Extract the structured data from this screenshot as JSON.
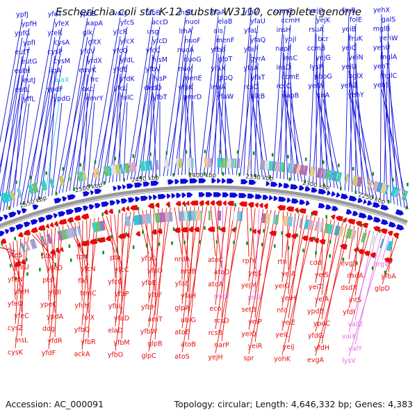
{
  "title": "Escherichia coli str. K-12 substr. W3110, complete genome",
  "footer": {
    "accession": "Accession: AC_000091",
    "summary": "Topology: circular; Length: 4,646,332 bp; Genes: 4,383"
  },
  "colors": {
    "forward": "#0a0ad8",
    "reverse": "#e80b0b",
    "rna": "#e46fe4",
    "rrna": "#30c8d8",
    "ruler": "#888888",
    "tick": "#1c8c1c"
  },
  "ruler_labels": [
    "2550 kbp",
    "2500 kbp",
    "2450 kbp",
    "2400 kbp",
    "2350 kbp",
    "2300 kbp",
    "2250 kbp"
  ],
  "forward_genes": [
    "ypfJ",
    "ypfH",
    "ypfG",
    "ypfI",
    "eutT",
    "eutG",
    "eutH",
    "eutJ",
    "eutL",
    "yffL",
    "yfeT",
    "yfeX",
    "yfeR",
    "cysA",
    "cysP",
    "cysM",
    "ligA",
    "alaX",
    "ypdF",
    "ypdG",
    "ypdE",
    "xapA",
    "glk",
    "gltX",
    "yfdV",
    "yfdX",
    "emrK",
    "frc",
    "oxc",
    "emrY",
    "vacJ",
    "yfcS",
    "yfcR",
    "yfcX",
    "yfcQ",
    "yfdL",
    "yfdE",
    "yfdK",
    "yfcL",
    "folC",
    "fabB",
    "accD",
    "usg",
    "yfcD",
    "yfcC",
    "hisM",
    "yfbV",
    "hisP",
    "dedD",
    "yfbT",
    "insB",
    "nuoI",
    "lrhA",
    "nuoF",
    "nuoA",
    "nuoG",
    "nuoJ",
    "menE",
    "yfbK",
    "pmrD",
    "elaA",
    "elaB",
    "ais",
    "menF",
    "yfbB",
    "glpT",
    "yfaX",
    "glpQ",
    "inaA",
    "yfaW",
    "yfaV",
    "yfaU",
    "yfaL",
    "yfaQ",
    "yfaP",
    "gyrA",
    "yfaA",
    "yfaT",
    "rcsC",
    "alkB",
    "ccmG",
    "ccmH",
    "insH",
    "yojI",
    "napF",
    "insC",
    "insD",
    "ccmE",
    "rcsC",
    "napB",
    "yejO",
    "yejK",
    "rsuA",
    "bcr",
    "ccmB",
    "yejG",
    "lysP",
    "pbpG",
    "yeiW",
    "cirA",
    "fruB",
    "folE",
    "yeiB",
    "fruK",
    "yeiC",
    "yeiN",
    "yeiU",
    "bglX",
    "yehZ",
    "yehY",
    "yehX",
    "galS",
    "mglB",
    "yehW",
    "yehU",
    "mglA",
    "yehT",
    "mglC",
    "yehS"
  ],
  "reverse_genes": [
    "yfeS",
    "yfeU",
    "yfeN",
    "yfeH",
    "yfeO",
    "yfeC",
    "cysZ",
    "insL",
    "cysK",
    "ptsH",
    "yfeD",
    "ptsI",
    "yfdI",
    "ypeC",
    "ypdA",
    "ddg",
    "yfdR",
    "yfdF",
    "torI",
    "yfcN",
    "flk",
    "trmC",
    "yfcH",
    "folX",
    "yfbQ",
    "yfbR",
    "ackA",
    "pta",
    "yfcC",
    "yfcG",
    "yfbP",
    "yfbL",
    "yfaD",
    "elaD",
    "yfbM",
    "yfbO",
    "yfbG",
    "yfaO",
    "yfbE",
    "yfbF",
    "yfbH",
    "arnT",
    "yfbW",
    "glpB",
    "glpC",
    "nrdA",
    "nrdB",
    "yfaE",
    "yfaH",
    "glpA",
    "ubiG",
    "atoE",
    "atoB",
    "atoS",
    "atoC",
    "atoD",
    "atoA",
    "micF",
    "eco",
    "rcsD",
    "rcsB",
    "narP",
    "yejH",
    "rplY",
    "yejL",
    "yejM",
    "proL",
    "setB",
    "yeiP",
    "yeiQ",
    "yeiR",
    "spr",
    "rtn",
    "yejA",
    "yeiG",
    "yeiH",
    "nfo",
    "yeiE",
    "yeiL",
    "yeiJ",
    "yohK",
    "cdd",
    "yeiS",
    "yeiT",
    "yeiA",
    "ypdB",
    "ypdC",
    "yfdG",
    "yfdH",
    "evgA",
    "evgS",
    "dsdA",
    "dsdX",
    "intS",
    "yfdI",
    "valU",
    "valX",
    "valY",
    "lysV",
    "argW",
    "yfbA",
    "glpD"
  ],
  "rna_genes": [
    "alaX",
    "valU",
    "valX",
    "valY",
    "lysV",
    "argW",
    "micF",
    "proL"
  ]
}
